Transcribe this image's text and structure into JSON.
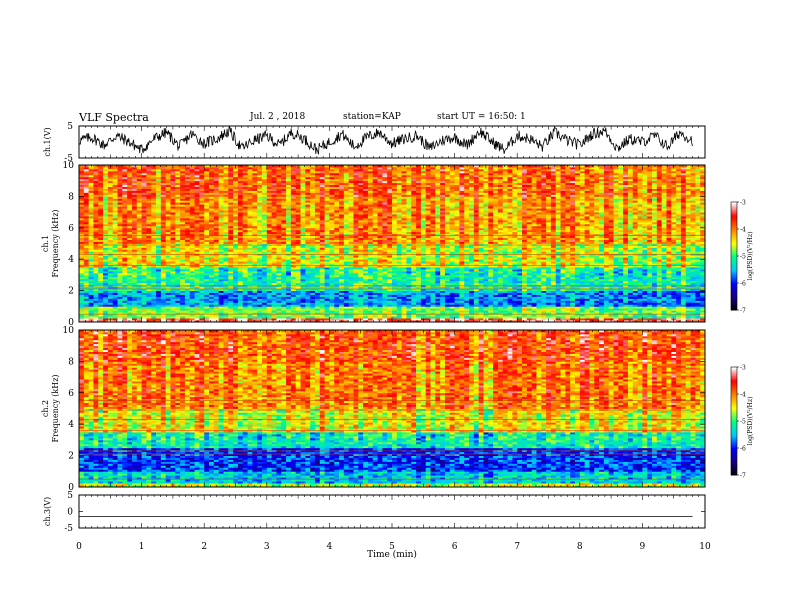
{
  "header": {
    "title": "VLF Spectra",
    "date": "Jul. 2 , 2018",
    "station": "station=KAP",
    "start": "start UT = 16:50: 1"
  },
  "chart_data": [
    {
      "type": "line",
      "panel": "ch1-waveform",
      "ylabel": "ch.1(V)",
      "ylim": [
        -5,
        5
      ],
      "yticks": [
        "5",
        "-5"
      ],
      "xlim": [
        0,
        10
      ],
      "x": [
        0,
        0.2,
        0.4,
        0.6,
        0.8,
        1.0,
        1.2,
        1.4,
        1.6,
        1.8,
        2.0,
        2.2,
        2.4,
        2.6,
        2.8,
        3.0,
        3.2,
        3.4,
        3.6,
        3.8,
        4.0,
        4.2,
        4.4,
        4.6,
        4.8,
        5.0,
        5.2,
        5.4,
        5.6,
        5.8,
        6.0,
        6.2,
        6.4,
        6.6,
        6.8,
        7.0,
        7.2,
        7.4,
        7.6,
        7.8,
        8.0,
        8.2,
        8.4,
        8.6,
        8.8,
        9.0,
        9.2,
        9.4,
        9.6,
        9.8
      ],
      "values": [
        0.5,
        1.5,
        -1.0,
        2.0,
        0.0,
        -2.5,
        1.0,
        3.0,
        -1.5,
        2.5,
        -0.5,
        1.0,
        3.5,
        -2.0,
        0.5,
        2.0,
        -1.0,
        3.0,
        1.0,
        -2.5,
        0.0,
        2.5,
        -1.5,
        1.5,
        3.0,
        -0.5,
        1.0,
        2.0,
        -2.0,
        0.5,
        1.5,
        -1.0,
        3.5,
        0.0,
        -2.5,
        2.0,
        1.0,
        -1.5,
        3.0,
        0.5,
        -1.0,
        2.5,
        3.5,
        -2.0,
        1.0,
        0.0,
        2.0,
        -1.5,
        3.0,
        0.5
      ]
    },
    {
      "type": "heatmap",
      "panel": "ch1-spectrogram",
      "ylabel": "ch.1 Frequency (kHz)",
      "xlim": [
        0,
        10
      ],
      "ylim": [
        0,
        10
      ],
      "yticks": [
        "0",
        "2",
        "4",
        "6",
        "8",
        "10"
      ],
      "colorbar": {
        "label": "log(PSD)(V²/Hz)",
        "range": [
          -7,
          -3
        ],
        "ticks": [
          "-3",
          "-4",
          "-5",
          "-6",
          "-7"
        ]
      },
      "bands": [
        {
          "from": 0,
          "to": 0.3,
          "level": -3.3
        },
        {
          "from": 0.3,
          "to": 1.0,
          "level": -4.8
        },
        {
          "from": 1.0,
          "to": 2.0,
          "level": -5.6
        },
        {
          "from": 2.0,
          "to": 3.5,
          "level": -5.1
        },
        {
          "from": 3.5,
          "to": 5.0,
          "level": -4.5
        },
        {
          "from": 5.0,
          "to": 8.0,
          "level": -4.1
        },
        {
          "from": 8.0,
          "to": 10.0,
          "level": -3.9
        }
      ]
    },
    {
      "type": "heatmap",
      "panel": "ch2-spectrogram",
      "ylabel": "ch.2 Frequency (kHz)",
      "xlim": [
        0,
        10
      ],
      "ylim": [
        0,
        10
      ],
      "yticks": [
        "0",
        "2",
        "4",
        "6",
        "8",
        "10"
      ],
      "colorbar": {
        "label": "log(PSD)(V²/Hz)",
        "range": [
          -7,
          -3
        ],
        "ticks": [
          "-3",
          "-4",
          "-5",
          "-6",
          "-7"
        ]
      },
      "bands": [
        {
          "from": 0,
          "to": 0.3,
          "level": -4.6
        },
        {
          "from": 0.3,
          "to": 1.0,
          "level": -5.4
        },
        {
          "from": 1.0,
          "to": 2.5,
          "level": -5.9
        },
        {
          "from": 2.5,
          "to": 3.5,
          "level": -5.2
        },
        {
          "from": 3.5,
          "to": 5.0,
          "level": -4.5
        },
        {
          "from": 5.0,
          "to": 8.0,
          "level": -4.0
        },
        {
          "from": 8.0,
          "to": 10.0,
          "level": -3.8
        }
      ]
    },
    {
      "type": "line",
      "panel": "ch3-waveform",
      "ylabel": "ch.3(V)",
      "ylim": [
        -5,
        5
      ],
      "yticks": [
        "5",
        "0",
        "-5"
      ],
      "xlim": [
        0,
        10
      ],
      "xlabel": "Time (min)",
      "xticks": [
        "0",
        "1",
        "2",
        "3",
        "4",
        "5",
        "6",
        "7",
        "8",
        "9",
        "10"
      ],
      "x": [
        0,
        9.8
      ],
      "values": [
        -1.5,
        -1.5
      ]
    }
  ],
  "colors": {
    "line": "#000000",
    "colormap": [
      "#000000",
      "#1a0080",
      "#0000ff",
      "#00c8ff",
      "#00ff80",
      "#ffff00",
      "#ff8000",
      "#ff0000",
      "#ffffff"
    ]
  }
}
